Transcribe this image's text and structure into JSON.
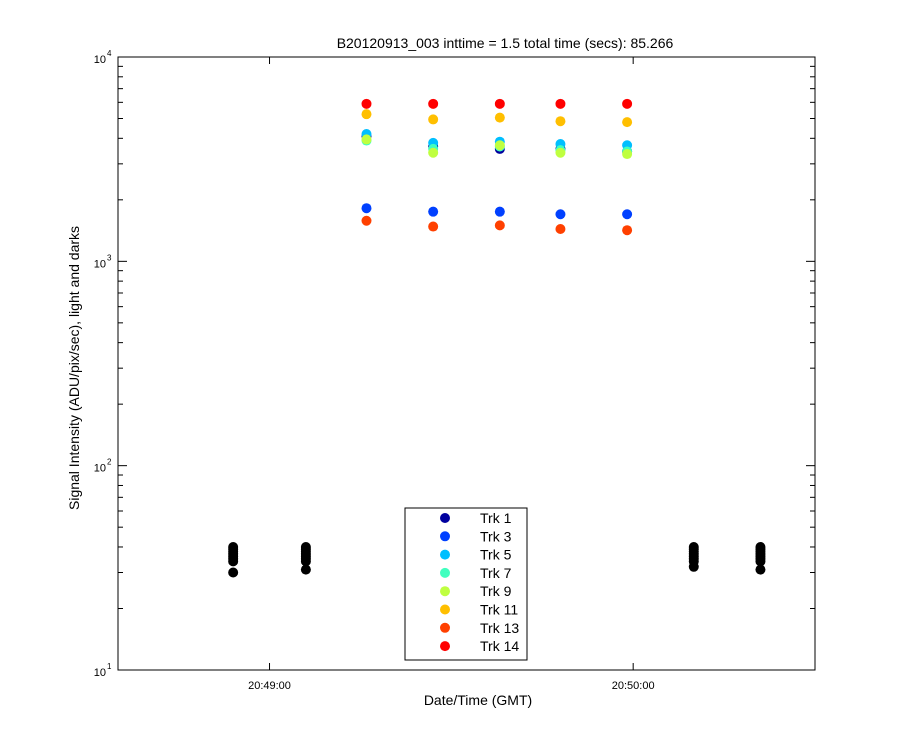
{
  "chart_data": {
    "type": "scatter",
    "title": "B20120913_003 inttime = 1.5 total time (secs): 85.266",
    "xlabel": "Date/Time (GMT)",
    "ylabel": "Signal Intensity (ADU/pix/sec), light and darks",
    "yscale": "log",
    "ylim": [
      10,
      10000
    ],
    "xlim": [
      "20:48:35",
      "20:50:30"
    ],
    "x_ticks": [
      "20:49:00",
      "20:50:00"
    ],
    "y_ticks": [
      {
        "value": 10,
        "base": "10",
        "exp": "1"
      },
      {
        "value": 100,
        "base": "10",
        "exp": "2"
      },
      {
        "value": 1000,
        "base": "10",
        "exp": "3"
      },
      {
        "value": 10000,
        "base": "10",
        "exp": "4"
      }
    ],
    "grid": false,
    "legend_position": "bottom-center",
    "light_times": [
      "20:49:16",
      "20:49:27",
      "20:49:38",
      "20:49:48",
      "20:49:59"
    ],
    "series": [
      {
        "name": "Trk 1",
        "color": "#00009F",
        "values": [
          4100,
          3650,
          3550,
          3550,
          3450
        ]
      },
      {
        "name": "Trk 3",
        "color": "#0040FF",
        "values": [
          1820,
          1750,
          1750,
          1700,
          1700
        ]
      },
      {
        "name": "Trk 5",
        "color": "#00BFFF",
        "values": [
          4200,
          3800,
          3850,
          3750,
          3700
        ]
      },
      {
        "name": "Trk 7",
        "color": "#40FFBF",
        "values": [
          3900,
          3550,
          3650,
          3500,
          3450
        ]
      },
      {
        "name": "Trk 9",
        "color": "#BFFF40",
        "values": [
          3950,
          3400,
          3700,
          3400,
          3350
        ]
      },
      {
        "name": "Trk 11",
        "color": "#FFBF00",
        "values": [
          5250,
          4950,
          5050,
          4850,
          4800
        ]
      },
      {
        "name": "Trk 13",
        "color": "#FF4000",
        "values": [
          1580,
          1480,
          1500,
          1440,
          1420
        ]
      },
      {
        "name": "Trk 14",
        "color": "#FF0000",
        "values": [
          5900,
          5900,
          5900,
          5900,
          5900
        ]
      }
    ],
    "darks": {
      "color": "#000000",
      "groups": [
        {
          "time": "20:48:54",
          "values": [
            40,
            39,
            38,
            37,
            36,
            35,
            34,
            30
          ]
        },
        {
          "time": "20:49:06",
          "values": [
            40,
            39,
            38,
            37,
            36,
            35,
            34,
            31
          ]
        },
        {
          "time": "20:50:10",
          "values": [
            40,
            39,
            38,
            37,
            36,
            35,
            34,
            32
          ]
        },
        {
          "time": "20:50:21",
          "values": [
            40,
            39,
            38,
            37,
            36,
            35,
            34,
            31
          ]
        }
      ]
    }
  }
}
